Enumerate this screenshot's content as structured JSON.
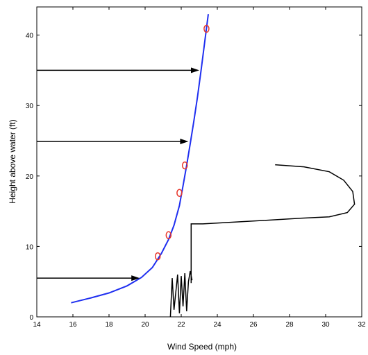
{
  "chart_data": {
    "type": "line",
    "xlabel": "Wind Speed (mph)",
    "ylabel": "Height above water (ft)",
    "xlim": [
      14,
      32
    ],
    "ylim": [
      0,
      44
    ],
    "x_ticks": [
      14,
      16,
      18,
      20,
      22,
      24,
      26,
      28,
      30,
      32
    ],
    "y_ticks": [
      0,
      10,
      20,
      30,
      40
    ],
    "grid": false,
    "series": [
      {
        "kind": "line",
        "color": "#1f2ff0",
        "points": [
          [
            15.9,
            2.0
          ],
          [
            17.0,
            2.7
          ],
          [
            18.0,
            3.4
          ],
          [
            19.0,
            4.4
          ],
          [
            19.8,
            5.6
          ],
          [
            20.4,
            7.0
          ],
          [
            20.9,
            9.0
          ],
          [
            21.3,
            11.0
          ],
          [
            21.6,
            13.0
          ],
          [
            21.9,
            15.8
          ],
          [
            22.1,
            18.6
          ],
          [
            22.3,
            21.5
          ],
          [
            22.5,
            24.6
          ],
          [
            22.7,
            27.8
          ],
          [
            22.9,
            31.2
          ],
          [
            23.1,
            35.0
          ],
          [
            23.3,
            39.0
          ],
          [
            23.5,
            43.0
          ]
        ]
      },
      {
        "kind": "scatter",
        "color": "#e8362a",
        "marker": "circle-open",
        "points": [
          [
            20.7,
            8.6
          ],
          [
            21.3,
            11.6
          ],
          [
            21.9,
            17.6
          ],
          [
            22.2,
            21.5
          ],
          [
            23.4,
            40.9
          ]
        ]
      },
      {
        "kind": "line",
        "color": "#000000",
        "points": [
          [
            22.55,
            4.8
          ],
          [
            22.55,
            13.2
          ],
          [
            23.2,
            13.2
          ],
          [
            26.0,
            13.6
          ],
          [
            28.6,
            14.0
          ],
          [
            30.2,
            14.2
          ],
          [
            31.2,
            14.8
          ],
          [
            31.6,
            16.0
          ],
          [
            31.5,
            17.8
          ],
          [
            31.0,
            19.4
          ],
          [
            30.2,
            20.6
          ],
          [
            28.8,
            21.3
          ],
          [
            27.2,
            21.6
          ]
        ]
      },
      {
        "kind": "line",
        "color": "#000000",
        "note_scatter": "noisy",
        "points": [
          [
            21.4,
            0.0
          ],
          [
            21.5,
            5.5
          ],
          [
            21.6,
            1.0
          ],
          [
            21.8,
            6.0
          ],
          [
            21.9,
            0.5
          ],
          [
            22.0,
            5.8
          ],
          [
            22.1,
            1.5
          ],
          [
            22.2,
            6.2
          ],
          [
            22.3,
            0.8
          ],
          [
            22.4,
            5.0
          ],
          [
            22.5,
            6.5
          ],
          [
            22.6,
            5.2
          ]
        ]
      }
    ],
    "arrows": [
      {
        "x_from": 14,
        "x_to": 19.7,
        "y": 5.5
      },
      {
        "x_from": 14,
        "x_to": 22.4,
        "y": 24.9
      },
      {
        "x_from": 14,
        "x_to": 23.0,
        "y": 35.0
      }
    ]
  }
}
